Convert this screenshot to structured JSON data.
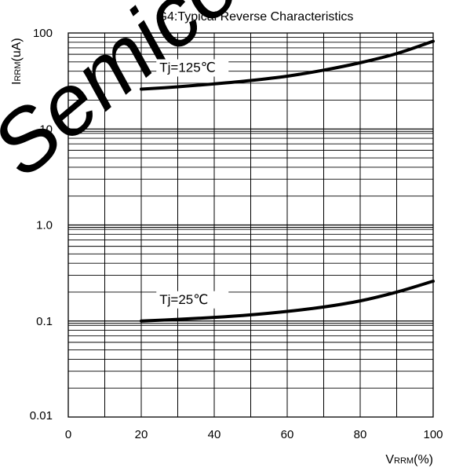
{
  "watermark_text": "Semico",
  "chart_data": {
    "type": "line",
    "title": "G4:Typical Reverse Characteristics",
    "xlabel_main": "V",
    "xlabel_sub": "RRM",
    "xlabel_unit": "(%)",
    "ylabel_main": "I",
    "ylabel_sub": "RRM",
    "ylabel_unit": "(uA)",
    "x_scale": "linear",
    "y_scale": "log",
    "xlim": [
      0,
      100
    ],
    "ylim": [
      0.01,
      100
    ],
    "x_ticks": [
      0,
      20,
      40,
      60,
      80,
      100
    ],
    "x_tick_labels": [
      "0",
      "20",
      "40",
      "60",
      "80",
      "100"
    ],
    "y_ticks": [
      0.01,
      0.1,
      1.0,
      10,
      100
    ],
    "y_tick_labels": [
      "0.01",
      "0.1",
      "1.0",
      "10",
      "100"
    ],
    "grid": true,
    "series": [
      {
        "name": "Tj=125℃",
        "color": "#000000",
        "x": [
          20,
          30,
          40,
          50,
          60,
          70,
          80,
          90,
          100
        ],
        "y": [
          26,
          27.5,
          29.5,
          32,
          35.5,
          41,
          49,
          61,
          82
        ]
      },
      {
        "name": "Tj=25℃",
        "color": "#000000",
        "x": [
          20,
          30,
          40,
          50,
          60,
          70,
          80,
          90,
          100
        ],
        "y": [
          0.1,
          0.104,
          0.109,
          0.116,
          0.126,
          0.14,
          0.162,
          0.2,
          0.26
        ]
      }
    ]
  }
}
